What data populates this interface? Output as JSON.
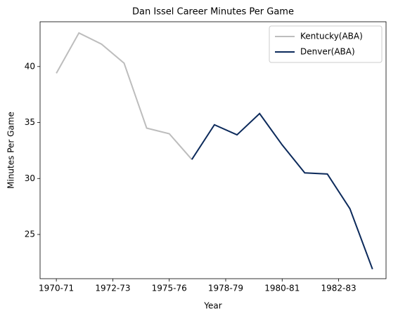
{
  "chart_data": {
    "type": "line",
    "title": "Dan Issel Career Minutes Per Game",
    "xlabel": "Year",
    "ylabel": "Minutes Per Game",
    "series": [
      {
        "name": "Kentucky(ABA)",
        "color": "#bdbdbd",
        "x": [
          0,
          1,
          2,
          3,
          4,
          5,
          6
        ],
        "values": [
          39.4,
          43.0,
          42.0,
          40.3,
          34.5,
          34.0,
          31.7
        ]
      },
      {
        "name": "Denver(ABA)",
        "color": "#0c2a5b",
        "x": [
          6,
          7,
          8,
          9,
          10,
          11,
          12,
          13,
          14
        ],
        "values": [
          31.7,
          34.8,
          33.9,
          35.8,
          33.0,
          30.5,
          30.4,
          27.3,
          21.9
        ]
      }
    ],
    "xlim": [
      -0.72,
      14.6
    ],
    "xticks": [
      {
        "value": 0,
        "label": "1970-71"
      },
      {
        "value": 2.5,
        "label": "1972-73"
      },
      {
        "value": 5,
        "label": "1975-76"
      },
      {
        "value": 7.5,
        "label": "1978-79"
      },
      {
        "value": 10,
        "label": "1980-81"
      },
      {
        "value": 12.5,
        "label": "1982-83"
      }
    ],
    "ylim": [
      21.05,
      44.0
    ],
    "yticks": [
      25,
      30,
      35,
      40
    ],
    "legend": "upper right"
  }
}
